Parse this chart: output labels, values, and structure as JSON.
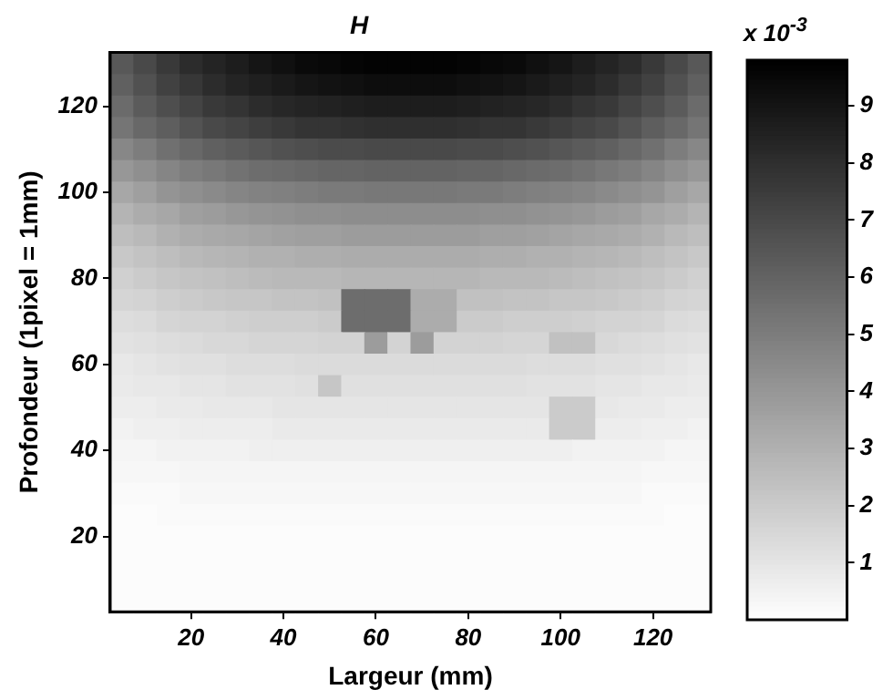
{
  "chart_data": {
    "type": "heatmap",
    "title": "H",
    "xlabel": "Largeur (mm)",
    "ylabel": "Profondeur (1pixel = 1mm)",
    "clabel": "x 10$^{-3}$",
    "categories": [
      null,
      null,
      null,
      "20",
      null,
      null,
      null,
      "40",
      null,
      null,
      null,
      "60",
      null,
      null,
      null,
      "80",
      null,
      null,
      null,
      "100",
      null,
      null,
      null,
      "120",
      null,
      null
    ],
    "y_categories": [
      null,
      null,
      "120",
      null,
      null,
      null,
      "100",
      null,
      null,
      null,
      "80",
      null,
      null,
      null,
      "60",
      null,
      null,
      null,
      "40",
      null,
      null,
      null,
      "20",
      null,
      null,
      null
    ],
    "clim": [
      0,
      9.8
    ],
    "cticks": [
      1,
      2,
      3,
      4,
      5,
      6,
      7,
      8,
      9
    ],
    "cells": [
      [
        6.4,
        7.0,
        7.6,
        8.1,
        8.4,
        8.7,
        9.0,
        9.2,
        9.4,
        9.5,
        9.6,
        9.7,
        9.7,
        9.7,
        9.7,
        9.6,
        9.5,
        9.4,
        9.2,
        9.0,
        8.7,
        8.4,
        8.1,
        7.6,
        7.0,
        6.4
      ],
      [
        6.1,
        6.7,
        7.3,
        7.7,
        8.1,
        8.4,
        8.6,
        8.8,
        9.0,
        9.1,
        9.2,
        9.3,
        9.3,
        9.3,
        9.3,
        9.2,
        9.1,
        9.0,
        8.8,
        8.6,
        8.4,
        8.1,
        7.7,
        7.3,
        6.7,
        6.1
      ],
      [
        5.7,
        6.3,
        6.8,
        7.2,
        7.6,
        7.8,
        8.1,
        8.3,
        8.4,
        8.5,
        8.6,
        8.7,
        8.7,
        8.7,
        8.7,
        8.6,
        8.5,
        8.4,
        8.3,
        8.1,
        7.8,
        7.6,
        7.2,
        6.8,
        6.3,
        5.7
      ],
      [
        5.3,
        5.8,
        6.2,
        6.6,
        7.0,
        7.2,
        7.4,
        7.6,
        7.8,
        7.8,
        7.9,
        8.0,
        8.0,
        8.0,
        8.0,
        7.9,
        7.8,
        7.8,
        7.6,
        7.4,
        7.2,
        7.0,
        6.6,
        6.2,
        5.8,
        5.3
      ],
      [
        4.6,
        5.0,
        5.5,
        5.8,
        6.1,
        6.3,
        6.5,
        6.7,
        6.8,
        6.9,
        6.9,
        7.0,
        7.0,
        7.0,
        7.0,
        6.9,
        6.9,
        6.8,
        6.7,
        6.5,
        6.3,
        6.1,
        5.8,
        5.5,
        5.0,
        4.6
      ],
      [
        4.0,
        4.3,
        4.7,
        5.0,
        5.2,
        5.4,
        5.6,
        5.7,
        5.8,
        5.9,
        5.9,
        6.0,
        6.0,
        6.0,
        6.0,
        5.9,
        5.9,
        5.8,
        5.7,
        5.6,
        5.4,
        5.2,
        5.0,
        4.7,
        4.3,
        4.0
      ],
      [
        3.4,
        3.7,
        4.1,
        4.3,
        4.5,
        4.7,
        4.8,
        4.9,
        5.0,
        5.1,
        5.1,
        5.2,
        5.2,
        5.2,
        5.2,
        5.1,
        5.1,
        5.0,
        4.9,
        4.8,
        4.7,
        4.5,
        4.3,
        4.1,
        3.7,
        3.4
      ],
      [
        2.9,
        3.2,
        3.4,
        3.7,
        3.8,
        4.0,
        4.1,
        4.2,
        4.3,
        4.3,
        4.4,
        4.4,
        4.4,
        4.4,
        4.4,
        4.4,
        4.3,
        4.3,
        4.2,
        4.1,
        4.0,
        3.8,
        3.7,
        3.4,
        3.2,
        2.9
      ],
      [
        2.5,
        2.7,
        3.0,
        3.2,
        3.3,
        3.4,
        3.5,
        3.6,
        3.7,
        3.7,
        3.8,
        3.8,
        3.8,
        3.8,
        3.8,
        3.8,
        3.7,
        3.7,
        3.6,
        3.5,
        3.4,
        3.3,
        3.2,
        3.0,
        2.7,
        2.5
      ],
      [
        2.1,
        2.3,
        2.5,
        2.7,
        2.8,
        2.9,
        3.0,
        3.0,
        3.1,
        3.1,
        3.2,
        3.2,
        3.2,
        3.2,
        3.2,
        3.2,
        3.1,
        3.1,
        3.0,
        3.0,
        2.9,
        2.8,
        2.7,
        2.5,
        2.3,
        2.1
      ],
      [
        1.8,
        2.0,
        2.2,
        2.3,
        2.4,
        2.5,
        2.6,
        2.7,
        2.7,
        2.7,
        2.8,
        2.8,
        2.8,
        2.8,
        2.8,
        2.8,
        2.7,
        2.7,
        2.7,
        2.6,
        2.5,
        2.4,
        2.3,
        2.2,
        2.0,
        1.8
      ],
      [
        1.6,
        1.7,
        1.9,
        2.0,
        2.1,
        2.2,
        2.2,
        2.3,
        2.3,
        2.4,
        5.6,
        5.6,
        5.6,
        3.2,
        3.2,
        2.4,
        2.4,
        2.3,
        2.3,
        2.2,
        2.2,
        2.1,
        2.0,
        1.9,
        1.7,
        1.6
      ],
      [
        1.3,
        1.4,
        1.6,
        1.7,
        1.7,
        1.8,
        1.9,
        1.9,
        1.9,
        2.0,
        5.6,
        5.6,
        5.6,
        3.2,
        3.2,
        2.0,
        2.0,
        1.9,
        1.9,
        1.9,
        1.8,
        1.7,
        1.7,
        1.6,
        1.4,
        1.3
      ],
      [
        1.1,
        1.2,
        1.3,
        1.4,
        1.5,
        1.5,
        1.6,
        1.6,
        1.6,
        1.7,
        1.7,
        3.8,
        1.7,
        3.8,
        1.7,
        1.7,
        1.7,
        1.6,
        1.6,
        2.4,
        2.4,
        1.5,
        1.4,
        1.3,
        1.2,
        1.1
      ],
      [
        0.9,
        1.0,
        1.1,
        1.2,
        1.2,
        1.3,
        1.3,
        1.3,
        1.4,
        1.4,
        1.4,
        1.4,
        1.4,
        1.4,
        1.4,
        1.4,
        1.4,
        1.4,
        1.3,
        1.3,
        1.3,
        1.2,
        1.2,
        1.1,
        1.0,
        0.9
      ],
      [
        0.8,
        0.9,
        0.9,
        1.0,
        1.0,
        1.1,
        1.1,
        1.1,
        1.2,
        2.2,
        1.2,
        1.2,
        1.2,
        1.2,
        1.2,
        1.2,
        1.2,
        1.2,
        1.1,
        1.1,
        1.1,
        1.0,
        1.0,
        0.9,
        0.9,
        0.8
      ],
      [
        0.7,
        0.7,
        0.8,
        0.8,
        0.9,
        0.9,
        0.9,
        1.0,
        1.0,
        1.0,
        1.0,
        1.0,
        1.0,
        1.0,
        1.0,
        1.0,
        1.0,
        1.0,
        1.0,
        2.0,
        2.0,
        0.9,
        0.8,
        0.8,
        0.7,
        0.7
      ],
      [
        0.5,
        0.6,
        0.6,
        0.7,
        0.7,
        0.7,
        0.7,
        0.8,
        0.8,
        0.8,
        0.8,
        0.8,
        0.8,
        0.8,
        0.8,
        0.8,
        0.8,
        0.8,
        0.8,
        2.0,
        2.0,
        0.7,
        0.7,
        0.6,
        0.6,
        0.5
      ],
      [
        0.4,
        0.4,
        0.5,
        0.5,
        0.5,
        0.5,
        0.6,
        0.6,
        0.6,
        0.6,
        0.6,
        0.6,
        0.6,
        0.6,
        0.6,
        0.6,
        0.6,
        0.6,
        0.6,
        0.6,
        0.5,
        0.5,
        0.5,
        0.5,
        0.4,
        0.4
      ],
      [
        0.3,
        0.3,
        0.3,
        0.4,
        0.4,
        0.4,
        0.4,
        0.4,
        0.4,
        0.4,
        0.4,
        0.4,
        0.4,
        0.4,
        0.4,
        0.4,
        0.4,
        0.4,
        0.4,
        0.4,
        0.4,
        0.4,
        0.4,
        0.3,
        0.3,
        0.3
      ],
      [
        0.2,
        0.2,
        0.2,
        0.3,
        0.3,
        0.3,
        0.3,
        0.3,
        0.3,
        0.3,
        0.3,
        0.3,
        0.3,
        0.3,
        0.3,
        0.3,
        0.3,
        0.3,
        0.3,
        0.3,
        0.3,
        0.3,
        0.3,
        0.2,
        0.2,
        0.2
      ],
      [
        0.1,
        0.1,
        0.2,
        0.2,
        0.2,
        0.2,
        0.2,
        0.2,
        0.2,
        0.2,
        0.2,
        0.2,
        0.2,
        0.2,
        0.2,
        0.2,
        0.2,
        0.2,
        0.2,
        0.2,
        0.2,
        0.2,
        0.2,
        0.2,
        0.1,
        0.1
      ],
      [
        0.1,
        0.1,
        0.1,
        0.1,
        0.1,
        0.1,
        0.1,
        0.1,
        0.1,
        0.1,
        0.1,
        0.1,
        0.1,
        0.1,
        0.1,
        0.1,
        0.1,
        0.1,
        0.1,
        0.1,
        0.1,
        0.1,
        0.1,
        0.1,
        0.1,
        0.1
      ],
      [
        0.1,
        0.1,
        0.1,
        0.1,
        0.1,
        0.1,
        0.1,
        0.1,
        0.1,
        0.1,
        0.1,
        0.1,
        0.1,
        0.1,
        0.1,
        0.1,
        0.1,
        0.1,
        0.1,
        0.1,
        0.1,
        0.1,
        0.1,
        0.1,
        0.1,
        0.1
      ],
      [
        0.1,
        0.1,
        0.1,
        0.1,
        0.1,
        0.1,
        0.1,
        0.1,
        0.1,
        0.1,
        0.1,
        0.1,
        0.1,
        0.1,
        0.1,
        0.1,
        0.1,
        0.1,
        0.1,
        0.1,
        0.1,
        0.1,
        0.1,
        0.1,
        0.1,
        0.1
      ],
      [
        0.1,
        0.1,
        0.1,
        0.1,
        0.1,
        0.1,
        0.1,
        0.1,
        0.1,
        0.1,
        0.1,
        0.1,
        0.1,
        0.1,
        0.1,
        0.1,
        0.1,
        0.1,
        0.1,
        0.1,
        0.1,
        0.1,
        0.1,
        0.1,
        0.1,
        0.1
      ]
    ]
  }
}
